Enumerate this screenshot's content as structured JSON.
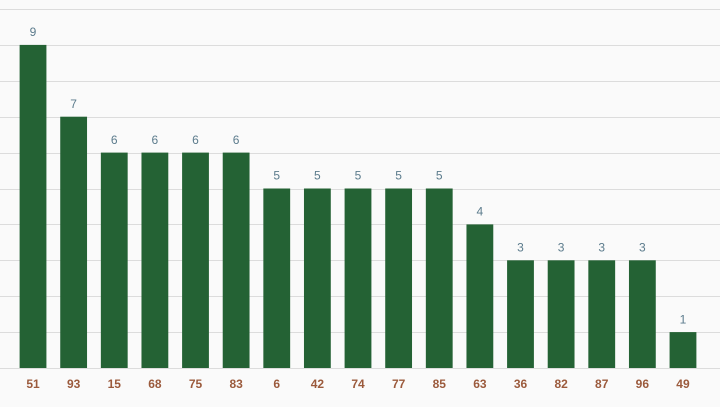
{
  "chart_data": {
    "type": "bar",
    "categories": [
      "51",
      "93",
      "15",
      "68",
      "75",
      "83",
      "6",
      "42",
      "74",
      "77",
      "85",
      "63",
      "36",
      "82",
      "87",
      "96",
      "49"
    ],
    "values": [
      9,
      7,
      6,
      6,
      6,
      6,
      5,
      5,
      5,
      5,
      5,
      4,
      3,
      3,
      3,
      3,
      1
    ],
    "color": "#246234",
    "ylim": [
      0,
      10
    ],
    "yticks": [
      0,
      1,
      2,
      3,
      4,
      5,
      6,
      7,
      8,
      9,
      10
    ],
    "grid": true
  }
}
